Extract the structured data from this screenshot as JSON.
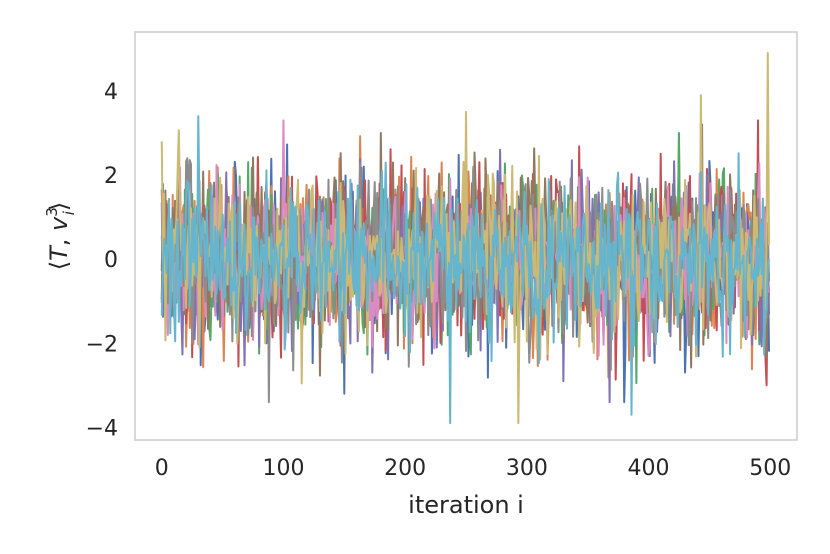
{
  "chart_data": {
    "type": "line",
    "title": "",
    "xlabel": "iteration i",
    "ylabel": "⟨T, v_i^3⟩",
    "xlim": [
      -22,
      522
    ],
    "ylim": [
      -4.3,
      5.4
    ],
    "xticks": [
      0,
      100,
      200,
      300,
      400,
      500
    ],
    "yticks": [
      -4,
      -2,
      0,
      2,
      4
    ],
    "xtick_labels": [
      "0",
      "100",
      "200",
      "300",
      "400",
      "500"
    ],
    "ytick_labels": [
      "−4",
      "−2",
      "0",
      "2",
      "4"
    ],
    "grid": false,
    "legend": "none",
    "n_points": 500,
    "series": [
      {
        "color": "#4c72b0",
        "seed": 11,
        "std": 1.0,
        "peaks": [
          [
            150,
            -3.2
          ],
          [
            380,
            -3.4
          ]
        ]
      },
      {
        "color": "#dd8452",
        "seed": 23,
        "std": 0.95,
        "peaks": [
          [
            425,
            2.9
          ]
        ]
      },
      {
        "color": "#55a868",
        "seed": 37,
        "std": 0.95,
        "peaks": [
          [
            425,
            3.0
          ]
        ]
      },
      {
        "color": "#c44e52",
        "seed": 41,
        "std": 1.0,
        "peaks": [
          [
            490,
            3.3
          ],
          [
            497,
            -3.0
          ]
        ]
      },
      {
        "color": "#8172b3",
        "seed": 53,
        "std": 0.95,
        "peaks": [
          [
            330,
            -2.9
          ],
          [
            368,
            -3.4
          ]
        ]
      },
      {
        "color": "#937860",
        "seed": 67,
        "std": 0.95,
        "peaks": [
          [
            180,
            3.0
          ]
        ]
      },
      {
        "color": "#da8bc3",
        "seed": 71,
        "std": 0.95,
        "peaks": [
          [
            100,
            3.3
          ]
        ]
      },
      {
        "color": "#8c8c8c",
        "seed": 83,
        "std": 0.95,
        "peaks": [
          [
            88,
            -3.4
          ]
        ]
      },
      {
        "color": "#ccb974",
        "seed": 97,
        "std": 1.0,
        "peaks": [
          [
            0,
            2.8
          ],
          [
            293,
            -3.9
          ],
          [
            443,
            3.9
          ],
          [
            498,
            4.9
          ],
          [
            250,
            3.5
          ]
        ]
      },
      {
        "color": "#64b5cd",
        "seed": 101,
        "std": 0.9,
        "peaks": [
          [
            237,
            -3.9
          ],
          [
            30,
            3.4
          ],
          [
            386,
            -3.7
          ]
        ]
      }
    ]
  }
}
